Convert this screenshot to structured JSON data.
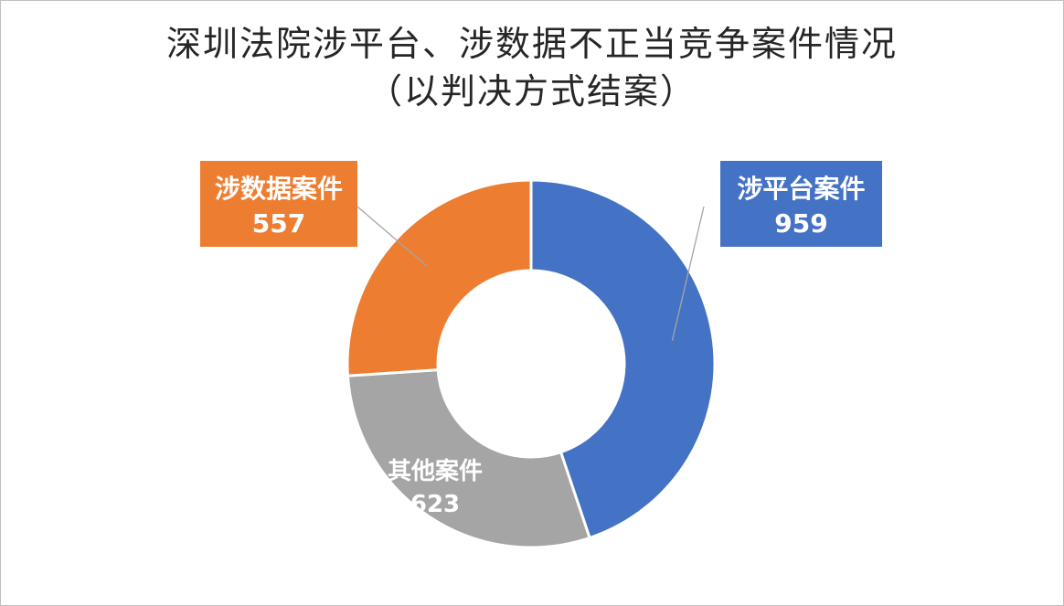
{
  "chart_data": {
    "type": "donut",
    "title": "深圳法院涉平台、涉数据不正当竞争案件情况",
    "subtitle": "（以判决方式结案）",
    "slices": [
      {
        "label": "涉平台案件",
        "value": 959,
        "color": "#4472C4"
      },
      {
        "label": "其他案件",
        "value": 623,
        "color": "#A5A5A5"
      },
      {
        "label": "涉数据案件",
        "value": 557,
        "color": "#ED7D31"
      }
    ],
    "legend": "none"
  }
}
